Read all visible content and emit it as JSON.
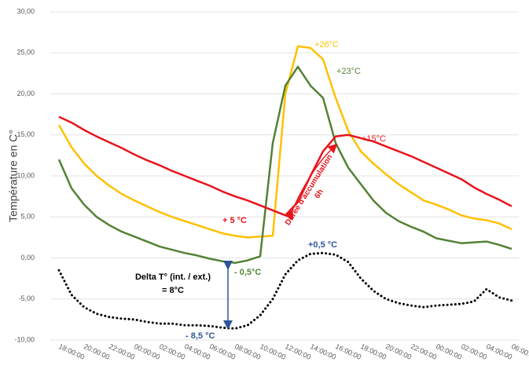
{
  "chart_data": {
    "type": "line",
    "y_label": "Température en C°",
    "categories": [
      "18:00:00",
      null,
      "20:00:00",
      null,
      "22:00:00",
      null,
      "00:00:00",
      null,
      "02:00:00",
      null,
      "04:00:00",
      null,
      "06:00:00",
      null,
      "08:00:00",
      null,
      "10:00:00",
      null,
      "12:00:00",
      null,
      "14:00:00",
      null,
      "16:00:00",
      null,
      "18:00:00",
      null,
      "20:00:00",
      null,
      "22:00:00",
      null,
      "00:00:00",
      null,
      "02:00:00",
      null,
      "04:00:00",
      null,
      "06:00:00"
    ],
    "series": [
      {
        "color": "#ffc000",
        "values": [
          16.2,
          13.5,
          11.5,
          10.0,
          8.8,
          7.8,
          7.0,
          6.3,
          5.6,
          5.0,
          4.5,
          4.0,
          3.5,
          3.0,
          2.7,
          2.5,
          2.6,
          2.7,
          20.0,
          25.8,
          25.6,
          24.2,
          19.5,
          15.5,
          13.0,
          11.5,
          10.2,
          9.0,
          8.0,
          7.0,
          6.5,
          5.9,
          5.2,
          4.8,
          4.6,
          4.2,
          3.5
        ]
      },
      {
        "color": "#548235",
        "values": [
          12.0,
          8.5,
          6.5,
          5.0,
          4.0,
          3.2,
          2.6,
          2.0,
          1.4,
          1.0,
          0.6,
          0.3,
          -0.1,
          -0.4,
          -0.6,
          -0.3,
          0.2,
          14.0,
          21.0,
          23.3,
          21.0,
          19.5,
          14.0,
          11.0,
          9.0,
          7.0,
          5.5,
          4.5,
          3.8,
          3.2,
          2.4,
          2.1,
          1.8,
          1.9,
          2.0,
          1.6,
          1.1
        ]
      },
      {
        "color": "#e8141c",
        "values": [
          17.2,
          16.5,
          15.6,
          14.8,
          14.1,
          13.4,
          12.6,
          11.9,
          11.3,
          10.6,
          10.0,
          9.4,
          8.8,
          8.1,
          7.5,
          7.0,
          6.4,
          5.8,
          5.2,
          6.8,
          10.0,
          13.0,
          14.8,
          15.0,
          14.6,
          14.2,
          13.6,
          13.0,
          12.4,
          11.7,
          11.0,
          10.3,
          9.6,
          8.6,
          7.8,
          7.1,
          6.3
        ]
      },
      {
        "color": "#000000",
        "line_style": "dotted",
        "values": [
          -1.5,
          -4.5,
          -6.0,
          -6.8,
          -7.2,
          -7.4,
          -7.5,
          -7.8,
          -8.0,
          -8.0,
          -8.2,
          -8.2,
          -8.3,
          -8.5,
          -8.6,
          -8.2,
          -7.0,
          -5.0,
          -2.0,
          -0.3,
          0.5,
          0.6,
          0.4,
          -0.5,
          -2.5,
          -4.0,
          -5.0,
          -5.5,
          -5.8,
          -6.0,
          -5.8,
          -5.7,
          -5.6,
          -5.3,
          -3.8,
          -4.8,
          -5.2
        ]
      }
    ],
    "ylim": [
      -10,
      30
    ],
    "yticks": [
      {
        "value": -10,
        "label": "-10,00"
      },
      {
        "value": -5,
        "label": "-5,00"
      },
      {
        "value": 0,
        "label": "0,00"
      },
      {
        "value": 5,
        "label": "5,00"
      },
      {
        "value": 10,
        "label": "10,00"
      },
      {
        "value": 15,
        "label": "15,00"
      },
      {
        "value": 20,
        "label": "20,00"
      },
      {
        "value": 25,
        "label": "25,00"
      },
      {
        "value": 30,
        "label": "30,00"
      }
    ],
    "grid": true,
    "annotations": [
      "+26°C",
      "+23°C",
      "+15°C",
      "+ 5 °C",
      "Durée d'accumulation",
      "6h",
      "+0,5 °C",
      "- 0,5°C",
      "Delta T° (int. / ext.)",
      "= 8°C",
      "- 8,5 °C"
    ]
  }
}
